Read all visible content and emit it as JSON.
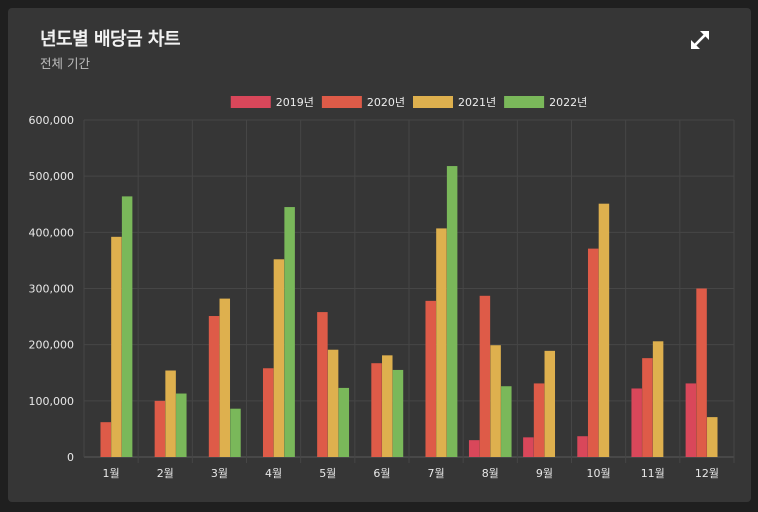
{
  "card": {
    "title": "년도별 배당금 차트",
    "subtitle": "전체 기간"
  },
  "icons": {
    "expand": "expand-arrows-icon"
  },
  "chart_data": {
    "type": "bar",
    "categories": [
      "1월",
      "2월",
      "3월",
      "4월",
      "5월",
      "6월",
      "7월",
      "8월",
      "9월",
      "10월",
      "11월",
      "12월"
    ],
    "series": [
      {
        "name": "2019년",
        "color": "#d9475a",
        "values": [
          0,
          0,
          0,
          0,
          0,
          0,
          0,
          30000,
          35000,
          37000,
          122000,
          131000
        ]
      },
      {
        "name": "2020년",
        "color": "#de5b48",
        "values": [
          62000,
          100000,
          251000,
          158000,
          258000,
          167000,
          278000,
          287000,
          131000,
          371000,
          176000,
          300000
        ]
      },
      {
        "name": "2021년",
        "color": "#deb04e",
        "values": [
          392000,
          154000,
          282000,
          352000,
          191000,
          181000,
          407000,
          199000,
          189000,
          451000,
          206000,
          71000
        ]
      },
      {
        "name": "2022년",
        "color": "#7ab85a",
        "values": [
          464000,
          113000,
          86000,
          445000,
          123000,
          155000,
          518000,
          126000,
          0,
          0,
          0,
          0
        ]
      }
    ],
    "ylim": [
      0,
      600000
    ],
    "yticks": [
      0,
      100000,
      200000,
      300000,
      400000,
      500000,
      600000
    ],
    "ytick_labels": [
      "0",
      "100,000",
      "200,000",
      "300,000",
      "400,000",
      "500,000",
      "600,000"
    ],
    "legend_position": "top-center",
    "grid": true
  }
}
